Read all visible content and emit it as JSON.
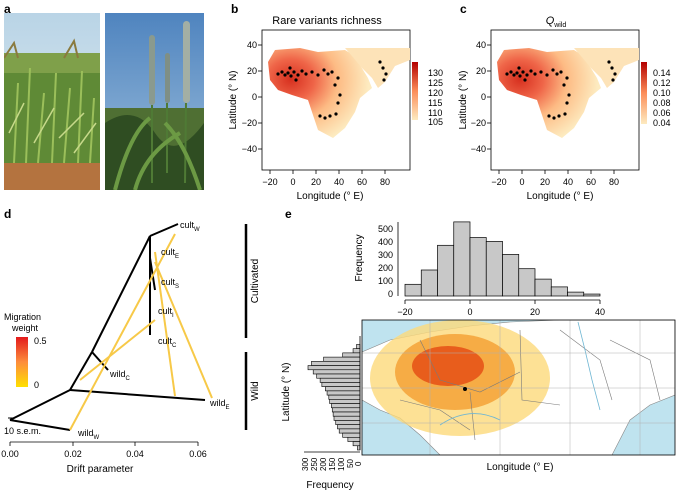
{
  "panels": {
    "a": "a",
    "b": "b",
    "c": "c",
    "d": "d",
    "e": "e"
  },
  "map_b": {
    "title": "Rare variants richness",
    "xlabel": "Longitude (° E)",
    "ylabel": "Latitude (° N)",
    "xticks": [
      "−20",
      "0",
      "20",
      "40",
      "60",
      "80"
    ],
    "yticks": [
      "40",
      "20",
      "0",
      "−20",
      "−40"
    ],
    "legend_ticks": [
      "130",
      "125",
      "120",
      "115",
      "110",
      "105"
    ],
    "legend_low": "#fbe8b0",
    "legend_high": "#d7301f"
  },
  "map_c": {
    "title_main": "Q",
    "title_sub": "wild",
    "xlabel": "Longitude (° E)",
    "ylabel": "Latitude (° N)",
    "xticks": [
      "−20",
      "0",
      "20",
      "40",
      "60",
      "80"
    ],
    "yticks": [
      "40",
      "20",
      "0",
      "−20",
      "−40"
    ],
    "legend_ticks": [
      "0.14",
      "0.12",
      "0.10",
      "0.08",
      "0.06",
      "0.04"
    ]
  },
  "tree_d": {
    "xlabel": "Drift parameter",
    "xticks": [
      "0.00",
      "0.02",
      "0.04",
      "0.06"
    ],
    "legend_title_1": "Migration",
    "legend_title_2": "weight",
    "legend_max": "0.5",
    "legend_min": "0",
    "scale_label": "10 s.e.m.",
    "group_cultivated": "Cultivated",
    "group_wild": "Wild",
    "leaves": [
      {
        "main": "cult",
        "sub": "W"
      },
      {
        "main": "cult",
        "sub": "E"
      },
      {
        "main": "cult",
        "sub": "S"
      },
      {
        "main": "cult",
        "sub": "I"
      },
      {
        "main": "cult",
        "sub": "C"
      },
      {
        "main": "wild",
        "sub": "C"
      },
      {
        "main": "wild",
        "sub": "E"
      },
      {
        "main": "wild",
        "sub": "W"
      }
    ]
  },
  "hist_e": {
    "top_ylabel": "Frequency",
    "top_yticks": [
      "500",
      "400",
      "300",
      "200",
      "100",
      "0"
    ],
    "top_xticks": [
      "−20",
      "0",
      "20",
      "40"
    ],
    "left_ylabel": "Latitude (° N)",
    "left_yticks": [
      "30",
      "20",
      "10"
    ],
    "left_xticks": [
      "300",
      "250",
      "200",
      "150",
      "100",
      "50",
      "0"
    ],
    "left_xlabel": "Frequency",
    "map_xlabel": "Longitude (° E)"
  },
  "chart_data": [
    {
      "type": "bar",
      "title": "",
      "xlabel": "",
      "ylabel": "Frequency",
      "x": [
        -20,
        -15,
        -10,
        -5,
        0,
        5,
        10,
        15,
        20,
        25,
        30,
        35
      ],
      "values": [
        90,
        200,
        390,
        570,
        450,
        420,
        320,
        210,
        130,
        70,
        30,
        15
      ],
      "xlim": [
        -20,
        40
      ],
      "ylim": [
        0,
        580
      ]
    },
    {
      "type": "bar",
      "title": "",
      "xlabel": "Frequency",
      "ylabel": "Latitude (° N)",
      "x": [
        30,
        29,
        28,
        27,
        26,
        25,
        24,
        23,
        22,
        21,
        20,
        19,
        18,
        17,
        16,
        15,
        14,
        13,
        12,
        11,
        10,
        9,
        8,
        7,
        6
      ],
      "values": [
        20,
        40,
        100,
        210,
        280,
        300,
        270,
        250,
        230,
        220,
        200,
        190,
        180,
        175,
        165,
        160,
        155,
        150,
        140,
        130,
        120,
        100,
        70,
        40,
        15
      ],
      "ylim": [
        5,
        32
      ],
      "xlim": [
        0,
        300
      ]
    }
  ]
}
